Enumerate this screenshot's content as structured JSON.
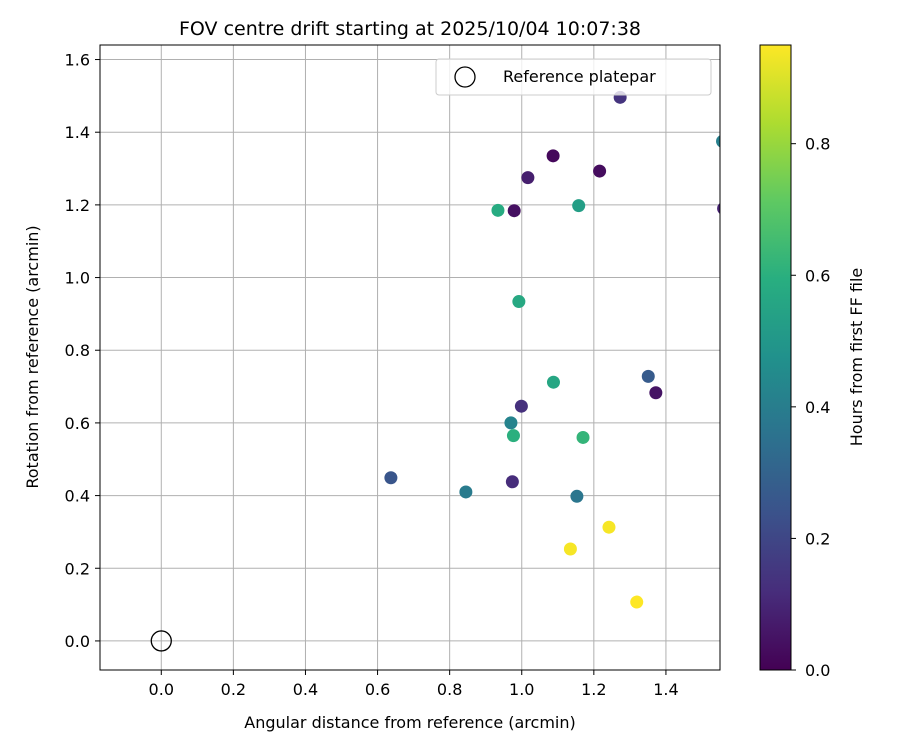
{
  "chart_data": {
    "type": "scatter",
    "title": "FOV centre drift starting at 2025/10/04 10:07:38",
    "xlabel": "Angular distance from reference (arcmin)",
    "ylabel": "Rotation from reference (arcmin)",
    "xlim": [
      -0.17,
      1.55
    ],
    "ylim": [
      -0.08,
      1.64
    ],
    "xticks": [
      "0.0",
      "0.2",
      "0.4",
      "0.6",
      "0.8",
      "1.0",
      "1.2",
      "1.4"
    ],
    "yticks": [
      "0.0",
      "0.2",
      "0.4",
      "0.6",
      "0.8",
      "1.0",
      "1.2",
      "1.4",
      "1.6"
    ],
    "grid": true,
    "legend": {
      "position": "top-right",
      "entries": [
        "Reference platepar"
      ]
    },
    "reference_point": {
      "x": 0.0,
      "y": 0.0
    },
    "colorbar": {
      "label": "Hours from first FF file",
      "min": 0.0,
      "max": 0.95,
      "ticks": [
        "0.0",
        "0.2",
        "0.4",
        "0.6",
        "0.8"
      ],
      "colormap": "viridis"
    },
    "points": [
      {
        "x": 1.087,
        "y": 1.335,
        "c": 0.02
      },
      {
        "x": 1.216,
        "y": 1.293,
        "c": 0.03
      },
      {
        "x": 0.979,
        "y": 1.184,
        "c": 0.04
      },
      {
        "x": 1.372,
        "y": 0.683,
        "c": 0.05
      },
      {
        "x": 1.017,
        "y": 1.275,
        "c": 0.08
      },
      {
        "x": 1.56,
        "y": 1.19,
        "c": 0.09
      },
      {
        "x": 0.974,
        "y": 0.438,
        "c": 0.12
      },
      {
        "x": 0.999,
        "y": 0.646,
        "c": 0.13
      },
      {
        "x": 1.273,
        "y": 1.496,
        "c": 0.14
      },
      {
        "x": 0.637,
        "y": 0.449,
        "c": 0.25
      },
      {
        "x": 1.351,
        "y": 0.728,
        "c": 0.27
      },
      {
        "x": 1.153,
        "y": 0.398,
        "c": 0.37
      },
      {
        "x": 0.845,
        "y": 0.41,
        "c": 0.39
      },
      {
        "x": 1.557,
        "y": 1.375,
        "c": 0.41
      },
      {
        "x": 0.97,
        "y": 0.6,
        "c": 0.42
      },
      {
        "x": 1.158,
        "y": 1.198,
        "c": 0.53
      },
      {
        "x": 1.088,
        "y": 0.712,
        "c": 0.56
      },
      {
        "x": 0.992,
        "y": 0.934,
        "c": 0.57
      },
      {
        "x": 0.934,
        "y": 1.185,
        "c": 0.58
      },
      {
        "x": 0.977,
        "y": 0.565,
        "c": 0.6
      },
      {
        "x": 1.17,
        "y": 0.56,
        "c": 0.62
      },
      {
        "x": 1.135,
        "y": 0.253,
        "c": 0.94
      },
      {
        "x": 1.242,
        "y": 0.313,
        "c": 0.94
      },
      {
        "x": 1.319,
        "y": 0.107,
        "c": 0.95
      }
    ]
  }
}
